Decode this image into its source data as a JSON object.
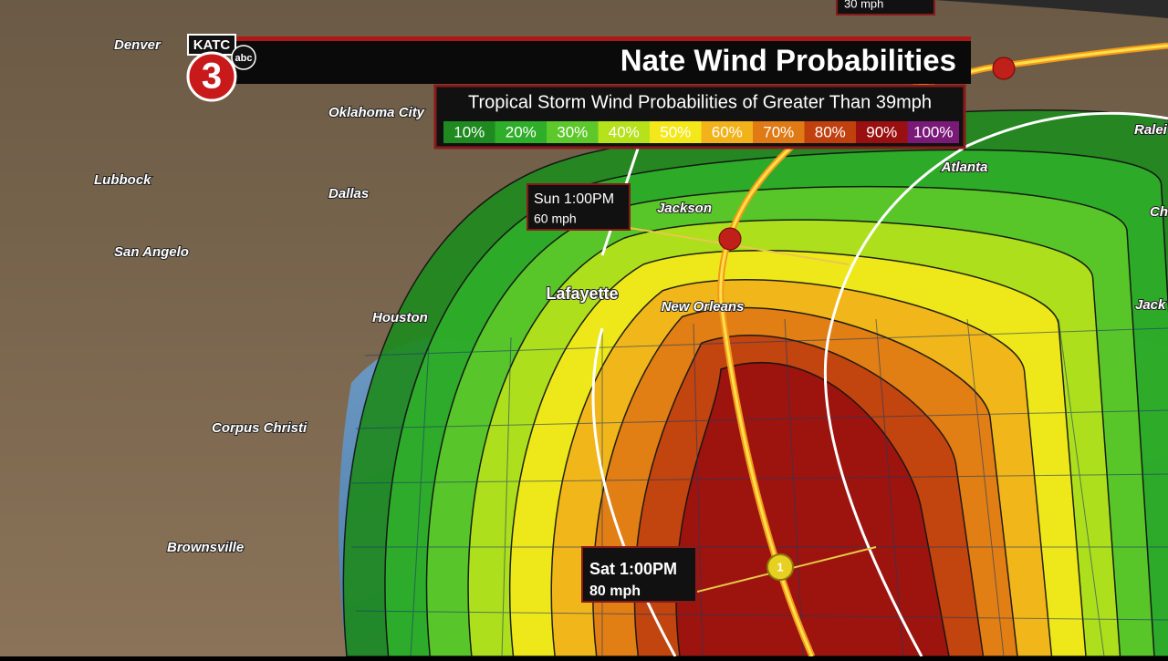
{
  "header": {
    "title": "Nate Wind Probabilities",
    "subtitle": "Tropical Storm Wind Probabilities of Greater Than 39mph"
  },
  "logo": {
    "station": "KATC",
    "channel": "3",
    "network": "abc"
  },
  "legend": {
    "items": [
      {
        "label": "10%",
        "color": "#1f8a1f"
      },
      {
        "label": "20%",
        "color": "#2fae2a"
      },
      {
        "label": "30%",
        "color": "#5cc82a"
      },
      {
        "label": "40%",
        "color": "#b6e21c"
      },
      {
        "label": "50%",
        "color": "#f4e81a"
      },
      {
        "label": "60%",
        "color": "#f2b21a"
      },
      {
        "label": "70%",
        "color": "#e07a14"
      },
      {
        "label": "80%",
        "color": "#c0400e"
      },
      {
        "label": "90%",
        "color": "#9a1010"
      },
      {
        "label": "100%",
        "color": "#7a1a78"
      }
    ]
  },
  "cities": [
    "Denver",
    "Oklahoma City",
    "Lubbock",
    "Dallas",
    "San Angelo",
    "Houston",
    "Corpus Christi",
    "Brownsville",
    "Lafayette",
    "Jackson",
    "New Orleans",
    "Atlanta",
    "Ralei",
    "Ch",
    "Jack"
  ],
  "callouts": [
    {
      "time": "Sun 1:00PM",
      "wind": "60 mph"
    },
    {
      "time": "Sat 1:00PM",
      "wind": "80 mph"
    },
    {
      "wind": "30 mph"
    }
  ],
  "storm_marker": "1"
}
